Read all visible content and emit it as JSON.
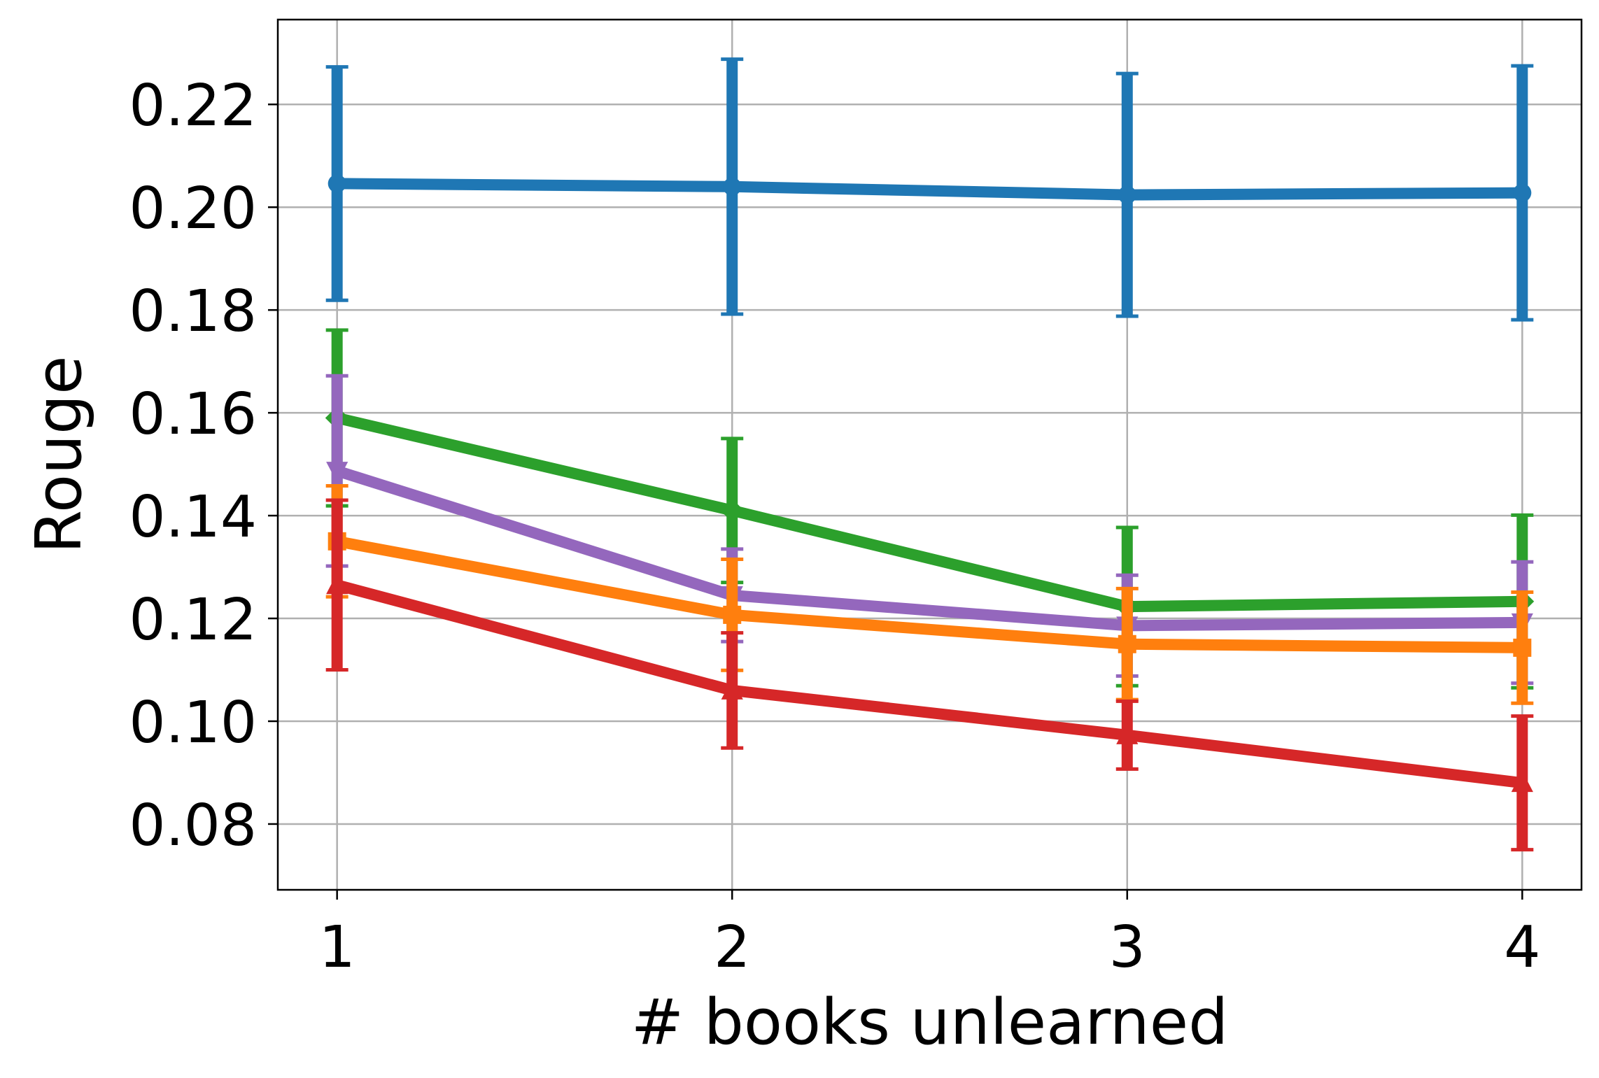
{
  "chart_data": {
    "type": "line",
    "title": "",
    "xlabel": "# books unlearned",
    "ylabel": "Rouge",
    "x": [
      1,
      2,
      3,
      4
    ],
    "x_tick_labels": [
      "1",
      "2",
      "3",
      "4"
    ],
    "y_ticks": [
      0.08,
      0.1,
      0.12,
      0.14,
      0.16,
      0.18,
      0.2,
      0.22
    ],
    "y_tick_labels": [
      "0.08",
      "0.10",
      "0.12",
      "0.14",
      "0.16",
      "0.18",
      "0.20",
      "0.22"
    ],
    "xlim": [
      0.85,
      4.15
    ],
    "ylim": [
      0.0672,
      0.2365
    ],
    "grid": true,
    "legend": "none",
    "series": [
      {
        "color": "#1f77b4",
        "marker": "circle",
        "values": [
          0.2046,
          0.204,
          0.2024,
          0.2028
        ],
        "error": [
          0.0227,
          0.0248,
          0.0236,
          0.0247
        ]
      },
      {
        "color": "#2ca02c",
        "marker": "diamond",
        "values": [
          0.159,
          0.141,
          0.1223,
          0.1233
        ],
        "error": [
          0.0171,
          0.014,
          0.0154,
          0.0168
        ]
      },
      {
        "color": "#9467bd",
        "marker": "triangle-down",
        "values": [
          0.1487,
          0.1245,
          0.1186,
          0.1192
        ],
        "error": [
          0.0185,
          0.009,
          0.0098,
          0.0118
        ]
      },
      {
        "color": "#ff7f0e",
        "marker": "square",
        "values": [
          0.135,
          0.1207,
          0.115,
          0.1143
        ],
        "error": [
          0.0108,
          0.0108,
          0.0108,
          0.0108
        ]
      },
      {
        "color": "#d62728",
        "marker": "triangle-up",
        "values": [
          0.1265,
          0.106,
          0.0973,
          0.088
        ],
        "error": [
          0.0165,
          0.0112,
          0.0066,
          0.013
        ]
      }
    ]
  }
}
